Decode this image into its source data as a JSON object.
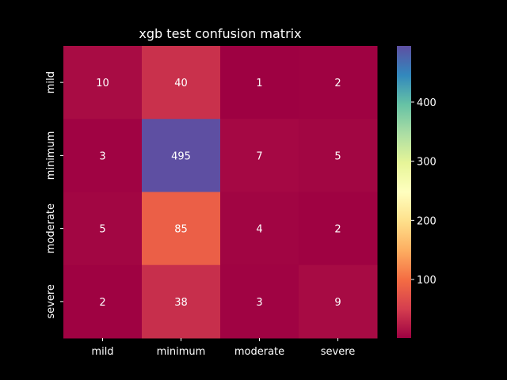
{
  "chart_data": {
    "type": "heatmap",
    "title": "xgb test confusion matrix",
    "xlabel": "",
    "ylabel": "",
    "x_categories": [
      "mild",
      "minimum",
      "moderate",
      "severe"
    ],
    "y_categories": [
      "mild",
      "minimum",
      "moderate",
      "severe"
    ],
    "values": [
      [
        10,
        40,
        1,
        2
      ],
      [
        3,
        495,
        7,
        5
      ],
      [
        5,
        85,
        4,
        2
      ],
      [
        2,
        38,
        3,
        9
      ]
    ],
    "colormap": "Spectral",
    "color_range": [
      1,
      495
    ],
    "colorbar_ticks": [
      100,
      200,
      300,
      400
    ],
    "background": "#000000",
    "text_color": "#ffffff"
  }
}
